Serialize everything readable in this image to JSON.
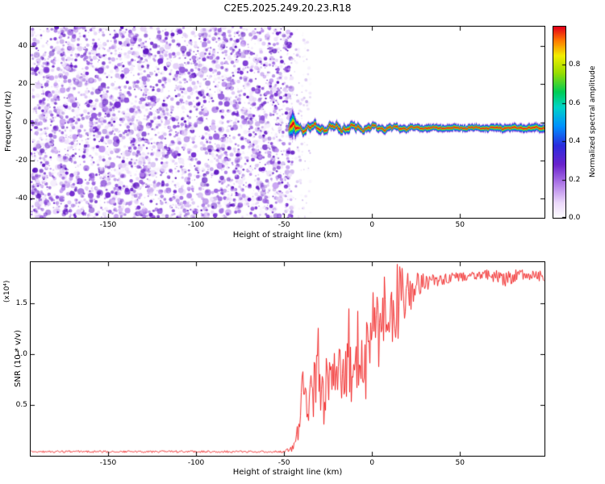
{
  "title": "C2E5.2025.249.20.23.R18",
  "chart_data": [
    {
      "type": "heatmap",
      "name": "doppler-spectrogram",
      "xlabel": "Height of straight line (km)",
      "ylabel": "Frequency (Hz)",
      "xlim": [
        -194,
        98
      ],
      "ylim": [
        -50,
        50
      ],
      "xticks": [
        -150,
        -100,
        -50,
        0,
        50
      ],
      "xtick_labels": [
        "-150",
        "-100",
        "-50",
        "0",
        "50"
      ],
      "yticks": [
        -40,
        -20,
        0,
        20,
        40
      ],
      "ytick_labels": [
        "-40",
        "-20",
        "0",
        "20",
        "40"
      ],
      "noise_region_end_km": -45,
      "noise_palette": [
        "#efe4fb",
        "#dcc4f6",
        "#bb8eee",
        "#9257dd",
        "#6f25cf",
        "#5a10c0"
      ],
      "signal": {
        "onset_km": -48,
        "center_freq_hz": -3,
        "description": "narrow high-amplitude ridge near -3 Hz running from -48 km to the right edge; random purple speckle noise fills the region left of -45 km"
      },
      "colorbar": {
        "label": "Normalized spectral amplitude",
        "vmin": 0,
        "vmax": 1,
        "ticks": [
          0,
          0.2,
          0.4,
          0.6,
          0.8
        ],
        "tick_labels": [
          "0.0",
          "0.2",
          "0.4",
          "0.6",
          "0.8"
        ],
        "stops": [
          [
            0,
            "#ffffff"
          ],
          [
            0.08,
            "#ecd9fb"
          ],
          [
            0.18,
            "#b07ae8"
          ],
          [
            0.28,
            "#6a22cc"
          ],
          [
            0.38,
            "#2b2bdd"
          ],
          [
            0.48,
            "#0090ff"
          ],
          [
            0.58,
            "#00d4c8"
          ],
          [
            0.66,
            "#00cc55"
          ],
          [
            0.76,
            "#99dd00"
          ],
          [
            0.85,
            "#f2ee00"
          ],
          [
            0.93,
            "#ff7700"
          ],
          [
            1,
            "#e4001a"
          ]
        ]
      }
    },
    {
      "type": "line",
      "name": "snr-profile",
      "xlabel": "Height of straight line (km)",
      "ylabel": "SNR (10 * v/v)",
      "scale_label": "(x10⁴)",
      "xlim": [
        -194,
        98
      ],
      "ylim": [
        0,
        1.9
      ],
      "xticks": [
        -150,
        -100,
        -50,
        0,
        50
      ],
      "xtick_labels": [
        "-150",
        "-100",
        "-50",
        "0",
        "50"
      ],
      "yticks": [
        0.5,
        1.0,
        1.5
      ],
      "ytick_labels": [
        "0.5",
        "1.0",
        "1.5"
      ],
      "line_color": "#f01818",
      "envelope": [
        [
          -194,
          0.04,
          0.01
        ],
        [
          -50,
          0.04,
          0.01
        ],
        [
          -46,
          0.07,
          0.03
        ],
        [
          -43,
          0.3,
          0.18
        ],
        [
          -40,
          0.55,
          0.3
        ],
        [
          -36,
          0.45,
          0.28
        ],
        [
          -32,
          0.75,
          0.35
        ],
        [
          -28,
          0.55,
          0.3
        ],
        [
          -24,
          0.85,
          0.35
        ],
        [
          -20,
          0.65,
          0.35
        ],
        [
          -16,
          0.95,
          0.35
        ],
        [
          -12,
          0.75,
          0.4
        ],
        [
          -8,
          1.05,
          0.4
        ],
        [
          -4,
          0.95,
          0.45
        ],
        [
          0,
          1.25,
          0.45
        ],
        [
          4,
          1.1,
          0.5
        ],
        [
          8,
          1.45,
          0.4
        ],
        [
          12,
          1.3,
          0.45
        ],
        [
          16,
          1.6,
          0.3
        ],
        [
          20,
          1.55,
          0.25
        ],
        [
          24,
          1.65,
          0.15
        ],
        [
          28,
          1.7,
          0.1
        ],
        [
          35,
          1.72,
          0.06
        ],
        [
          50,
          1.76,
          0.05
        ],
        [
          65,
          1.78,
          0.05
        ],
        [
          75,
          1.74,
          0.08
        ],
        [
          85,
          1.78,
          0.05
        ],
        [
          98,
          1.76,
          0.05
        ]
      ]
    }
  ]
}
